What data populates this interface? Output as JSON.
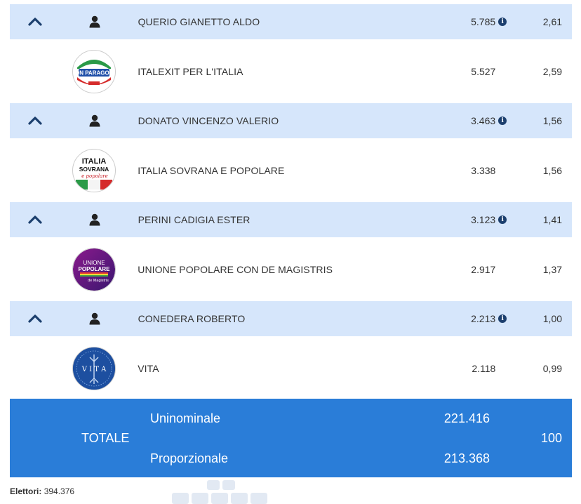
{
  "rows": [
    {
      "type": "candidate",
      "name": "QUERIO GIANETTO ALDO",
      "votes": "5.785",
      "pct": "2,61"
    },
    {
      "type": "party",
      "name": "ITALEXIT PER L'ITALIA",
      "votes": "5.527",
      "pct": "2,59",
      "logo": {
        "line1": "CON PARAGONE",
        "line2": "",
        "style": "italexit"
      }
    },
    {
      "type": "candidate",
      "name": "DONATO VINCENZO VALERIO",
      "votes": "3.463",
      "pct": "1,56"
    },
    {
      "type": "party",
      "name": "ITALIA SOVRANA E POPOLARE",
      "votes": "3.338",
      "pct": "1,56",
      "logo": {
        "line1": "ITALIA",
        "line2": "SOVRANA",
        "line3": "e popolare",
        "style": "isp"
      }
    },
    {
      "type": "candidate",
      "name": "PERINI CADIGIA ESTER",
      "votes": "3.123",
      "pct": "1,41"
    },
    {
      "type": "party",
      "name": "UNIONE POPOLARE CON DE MAGISTRIS",
      "votes": "2.917",
      "pct": "1,37",
      "logo": {
        "line1": "UNIONE",
        "line2": "POPOLARE",
        "line3": "de Magistris",
        "style": "up"
      }
    },
    {
      "type": "candidate",
      "name": "CONEDERA ROBERTO",
      "votes": "2.213",
      "pct": "1,00"
    },
    {
      "type": "party",
      "name": "VITA",
      "votes": "2.118",
      "pct": "0,99",
      "logo": {
        "line1": "V I T A",
        "style": "vita"
      }
    }
  ],
  "total": {
    "label": "TOTALE",
    "uninominale_label": "Uninominale",
    "uninominale_value": "221.416",
    "proporzionale_label": "Proporzionale",
    "proporzionale_value": "213.368",
    "pct": "100"
  },
  "footer": {
    "elettori_label": "Elettori:",
    "elettori_value": "394.376"
  },
  "colors": {
    "candidate_bg": "#d6e6fb",
    "total_bg": "#2a7dd8",
    "chevron": "#1c3f6e"
  },
  "icons": {
    "toggle": "chevron-up-icon",
    "candidate": "person-icon",
    "info": "info-icon"
  }
}
